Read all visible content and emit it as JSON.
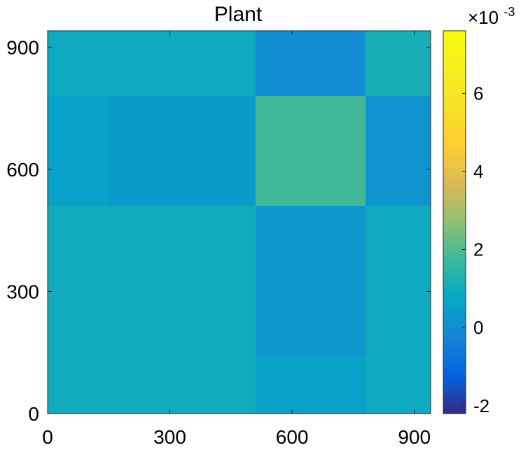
{
  "chart_data": {
    "type": "heatmap",
    "title": "Plant",
    "xlabel": "",
    "ylabel": "",
    "xlim": [
      0,
      940
    ],
    "ylim": [
      0,
      940
    ],
    "xticks": [
      0,
      300,
      600,
      900
    ],
    "yticks": [
      0,
      300,
      600,
      900
    ],
    "xtick_labels": [
      "0",
      "300",
      "600",
      "900"
    ],
    "ytick_labels": [
      "0",
      "300",
      "600",
      "900"
    ],
    "grid": false,
    "colorbar": {
      "colormap": "parula",
      "range": [
        -0.0022,
        0.0076
      ],
      "ticks": [
        -0.002,
        0,
        0.002,
        0.004,
        0.006
      ],
      "tick_labels": [
        "-2",
        "0",
        "2",
        "4",
        "6"
      ],
      "exponent_base": "×10",
      "exponent_power": "-3"
    },
    "block_boundaries": [
      0,
      150,
      510,
      780,
      940
    ],
    "blocks": [
      {
        "x": [
          0,
          150
        ],
        "y": [
          0,
          510
        ],
        "value": 0.00095
      },
      {
        "x": [
          150,
          510
        ],
        "y": [
          0,
          510
        ],
        "value": 0.00095
      },
      {
        "x": [
          510,
          780
        ],
        "y": [
          0,
          140
        ],
        "value": 0.0006
      },
      {
        "x": [
          510,
          780
        ],
        "y": [
          140,
          510
        ],
        "value": 0.0003
      },
      {
        "x": [
          780,
          940
        ],
        "y": [
          0,
          510
        ],
        "value": 0.0009
      },
      {
        "x": [
          0,
          150
        ],
        "y": [
          510,
          780
        ],
        "value": 0.0006
      },
      {
        "x": [
          150,
          510
        ],
        "y": [
          510,
          780
        ],
        "value": 0.0004
      },
      {
        "x": [
          510,
          780
        ],
        "y": [
          510,
          780
        ],
        "value": 0.0018
      },
      {
        "x": [
          780,
          940
        ],
        "y": [
          510,
          780
        ],
        "value": 0.0002
      },
      {
        "x": [
          0,
          150
        ],
        "y": [
          780,
          940
        ],
        "value": 0.0009
      },
      {
        "x": [
          150,
          510
        ],
        "y": [
          780,
          940
        ],
        "value": 0.0009
      },
      {
        "x": [
          510,
          780
        ],
        "y": [
          780,
          940
        ],
        "value": 0.0
      },
      {
        "x": [
          780,
          940
        ],
        "y": [
          780,
          940
        ],
        "value": 0.0011
      }
    ]
  }
}
